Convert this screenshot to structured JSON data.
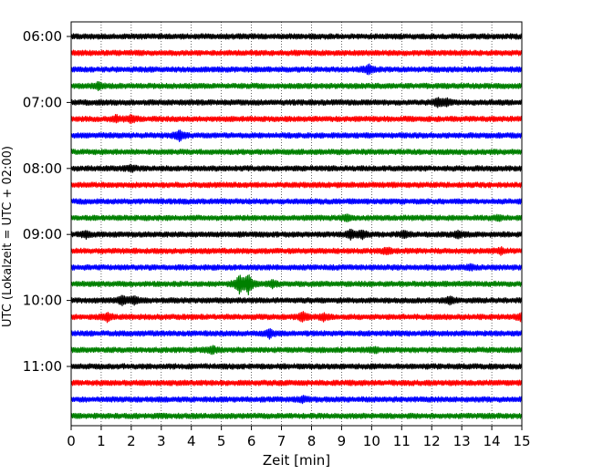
{
  "chart_data": {
    "type": "line",
    "title": "",
    "xlabel": "Zeit  [min]",
    "ylabel": "UTC (Lokalzeit = UTC + 02:00)",
    "xlim": [
      0,
      15
    ],
    "x_ticks": [
      "0",
      "1",
      "2",
      "3",
      "4",
      "5",
      "6",
      "7",
      "8",
      "9",
      "10",
      "11",
      "12",
      "13",
      "14",
      "15"
    ],
    "y_tick_labels": [
      {
        "label": "06:00",
        "trace_index": 0
      },
      {
        "label": "07:00",
        "trace_index": 4
      },
      {
        "label": "08:00",
        "trace_index": 8
      },
      {
        "label": "09:00",
        "trace_index": 12
      },
      {
        "label": "10:00",
        "trace_index": 16
      },
      {
        "label": "11:00",
        "trace_index": 20
      }
    ],
    "grid": "vertical dotted lines at each minute",
    "trace_interval_min": 15,
    "trace_colors": [
      "#000000",
      "#ff0000",
      "#0000ff",
      "#008000"
    ],
    "traces": [
      {
        "start": "06:00",
        "color": "#000000",
        "events": []
      },
      {
        "start": "06:15",
        "color": "#ff0000",
        "events": []
      },
      {
        "start": "06:30",
        "color": "#0000ff",
        "events": [
          {
            "t": 9.9,
            "amp": 0.45
          }
        ]
      },
      {
        "start": "06:45",
        "color": "#008000",
        "events": [
          {
            "t": 0.9,
            "amp": 0.3
          }
        ]
      },
      {
        "start": "07:00",
        "color": "#000000",
        "events": [
          {
            "t": 12.2,
            "amp": 0.35
          },
          {
            "t": 12.5,
            "amp": 0.3
          }
        ]
      },
      {
        "start": "07:15",
        "color": "#ff0000",
        "events": [
          {
            "t": 1.5,
            "amp": 0.3
          },
          {
            "t": 2.0,
            "amp": 0.35
          }
        ]
      },
      {
        "start": "07:30",
        "color": "#0000ff",
        "events": [
          {
            "t": 3.6,
            "amp": 0.55
          }
        ]
      },
      {
        "start": "07:45",
        "color": "#008000",
        "events": []
      },
      {
        "start": "08:00",
        "color": "#000000",
        "events": [
          {
            "t": 2.0,
            "amp": 0.25
          }
        ]
      },
      {
        "start": "08:15",
        "color": "#ff0000",
        "events": []
      },
      {
        "start": "08:30",
        "color": "#0000ff",
        "events": []
      },
      {
        "start": "08:45",
        "color": "#008000",
        "events": [
          {
            "t": 9.2,
            "amp": 0.25
          },
          {
            "t": 14.2,
            "amp": 0.2
          }
        ]
      },
      {
        "start": "09:00",
        "color": "#000000",
        "events": [
          {
            "t": 0.5,
            "amp": 0.3
          },
          {
            "t": 9.3,
            "amp": 0.4
          },
          {
            "t": 9.7,
            "amp": 0.35
          },
          {
            "t": 11.1,
            "amp": 0.25
          },
          {
            "t": 12.9,
            "amp": 0.3
          }
        ]
      },
      {
        "start": "09:15",
        "color": "#ff0000",
        "events": [
          {
            "t": 10.5,
            "amp": 0.25
          },
          {
            "t": 14.3,
            "amp": 0.25
          }
        ]
      },
      {
        "start": "09:30",
        "color": "#0000ff",
        "events": [
          {
            "t": 13.3,
            "amp": 0.2
          }
        ]
      },
      {
        "start": "09:45",
        "color": "#008000",
        "events": [
          {
            "t": 5.6,
            "amp": 0.9
          },
          {
            "t": 5.9,
            "amp": 1.0
          },
          {
            "t": 6.7,
            "amp": 0.3
          }
        ]
      },
      {
        "start": "10:00",
        "color": "#000000",
        "events": [
          {
            "t": 1.7,
            "amp": 0.45
          },
          {
            "t": 2.1,
            "amp": 0.35
          },
          {
            "t": 12.6,
            "amp": 0.3
          }
        ]
      },
      {
        "start": "10:15",
        "color": "#ff0000",
        "events": [
          {
            "t": 1.2,
            "amp": 0.4
          },
          {
            "t": 7.7,
            "amp": 0.45
          },
          {
            "t": 8.4,
            "amp": 0.3
          },
          {
            "t": 15.0,
            "amp": 0.4
          }
        ]
      },
      {
        "start": "10:30",
        "color": "#0000ff",
        "events": [
          {
            "t": 6.6,
            "amp": 0.4
          }
        ]
      },
      {
        "start": "10:45",
        "color": "#008000",
        "events": [
          {
            "t": 4.7,
            "amp": 0.35
          },
          {
            "t": 10.1,
            "amp": 0.2
          }
        ]
      },
      {
        "start": "11:00",
        "color": "#000000",
        "events": []
      },
      {
        "start": "11:15",
        "color": "#ff0000",
        "events": []
      },
      {
        "start": "11:30",
        "color": "#0000ff",
        "events": [
          {
            "t": 7.7,
            "amp": 0.25
          }
        ]
      },
      {
        "start": "11:45",
        "color": "#008000",
        "events": []
      }
    ]
  }
}
